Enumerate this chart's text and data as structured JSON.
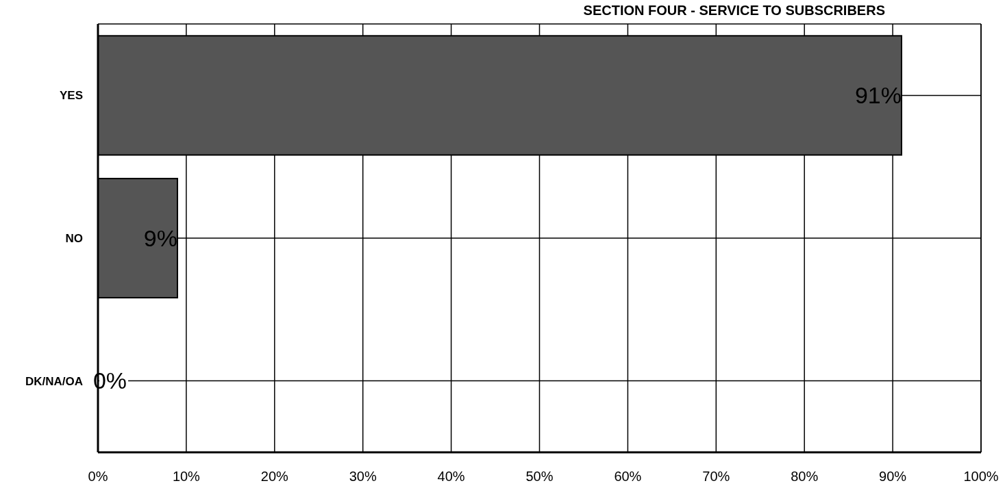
{
  "chart_data": {
    "type": "bar",
    "orientation": "horizontal",
    "title": "SECTION FOUR - SERVICE TO SUBSCRIBERS",
    "categories": [
      "YES",
      "NO",
      "DK/NA/OA"
    ],
    "values": [
      91,
      9,
      0
    ],
    "value_labels": [
      "91%",
      "9%",
      "0%"
    ],
    "color": "#555555",
    "xlim": [
      0,
      100
    ],
    "xticks": [
      {
        "value": 0,
        "label": "0%"
      },
      {
        "value": 10,
        "label": "10%"
      },
      {
        "value": 20,
        "label": "20%"
      },
      {
        "value": 30,
        "label": "30%"
      },
      {
        "value": 40,
        "label": "40%"
      },
      {
        "value": 50,
        "label": "50%"
      },
      {
        "value": 60,
        "label": "60%"
      },
      {
        "value": 70,
        "label": "70%"
      },
      {
        "value": 80,
        "label": "80%"
      },
      {
        "value": 90,
        "label": "90%"
      },
      {
        "value": 100,
        "label": "100%"
      }
    ],
    "grid": true
  }
}
